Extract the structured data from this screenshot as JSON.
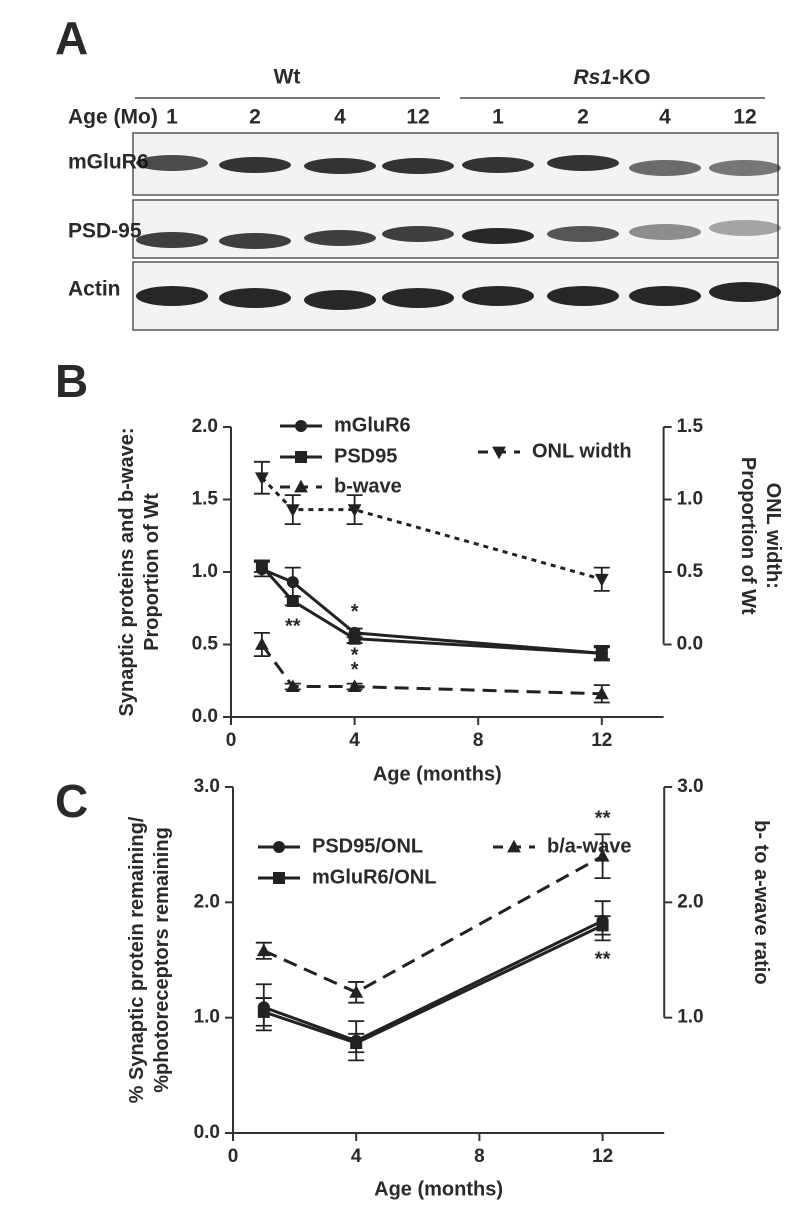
{
  "blot": {
    "panel": "A",
    "age_label": "Age (Mo)",
    "groups": [
      {
        "label": "Wt",
        "lanes": [
          "1",
          "2",
          "4",
          "12"
        ]
      },
      {
        "label_italic": "Rs1",
        "label": "-KO",
        "lanes": [
          "1",
          "2",
          "4",
          "12"
        ]
      }
    ],
    "rows": [
      "mGluR6",
      "PSD-95",
      "Actin"
    ]
  },
  "chart_data": [
    {
      "type": "line",
      "panel": "B",
      "xlabel": "Age (months)",
      "ylabel": [
        "Synaptic proteins and b-wave:",
        "Proportion of Wt"
      ],
      "y2label": [
        "ONL width:",
        "Proportion of Wt"
      ],
      "x": [
        1,
        2,
        4,
        12
      ],
      "xlim": [
        0,
        14
      ],
      "xticks": [
        0,
        4,
        8,
        12
      ],
      "ylim": [
        0,
        2
      ],
      "yticks": [
        {
          "value": 0,
          "label": "0.0"
        },
        0.5,
        {
          "value": 1,
          "label": "1.0"
        },
        1.5,
        {
          "value": 2,
          "label": "2.0"
        }
      ],
      "y2lim": [
        -0.5,
        1.5
      ],
      "y2ticks": [
        {
          "value": 0,
          "label": "0.0"
        },
        0.5,
        {
          "value": 1,
          "label": "1.0"
        },
        1.5
      ],
      "series": [
        {
          "name": "mGluR6",
          "color": "#222222",
          "marker": "circle",
          "line": "solid",
          "values": [
            1.02,
            0.93,
            0.58,
            0.44
          ],
          "errors": [
            0.05,
            0.1,
            0.03,
            0.04
          ]
        },
        {
          "name": "PSD95",
          "color": "#222222",
          "marker": "square",
          "line": "solid",
          "values": [
            1.04,
            0.8,
            0.54,
            0.44
          ],
          "errors": [
            0.04,
            0.03,
            0.03,
            0.05
          ]
        },
        {
          "name": "b-wave",
          "color": "#222222",
          "marker": "triangle",
          "line": "dashed",
          "values": [
            0.5,
            0.21,
            0.21,
            0.16
          ],
          "errors": [
            0.08,
            0.02,
            0.02,
            0.06
          ]
        },
        {
          "name": "ONL width",
          "color": "#222222",
          "marker": "triangle-down",
          "line": "dotted",
          "axis": "y2",
          "values": [
            1.15,
            0.93,
            0.93,
            0.45
          ],
          "errors": [
            0.11,
            0.1,
            0.1,
            0.08
          ]
        }
      ],
      "annotations": [
        {
          "text": "**",
          "x": 2,
          "y": 0.62
        },
        {
          "text": "*",
          "x": 4,
          "y": 0.72
        },
        {
          "text": "*",
          "x": 4,
          "y": 0.42
        },
        {
          "text": "*",
          "x": 4,
          "y": 0.32
        }
      ]
    },
    {
      "type": "line",
      "panel": "C",
      "xlabel": "Age (months)",
      "ylabel": [
        "% Synaptic protein remaining/",
        "%photoreceptors remaining"
      ],
      "y2label": [
        "b- to a-wave ratio"
      ],
      "x": [
        1,
        4,
        12
      ],
      "xlim": [
        0,
        14
      ],
      "xticks": [
        0,
        4,
        8,
        12
      ],
      "ylim": [
        0,
        3
      ],
      "yticks": [
        {
          "value": 0,
          "label": "0.0"
        },
        {
          "value": 1,
          "label": "1.0"
        },
        {
          "value": 2,
          "label": "2.0"
        },
        {
          "value": 3,
          "label": "3.0"
        }
      ],
      "y2lim": [
        0,
        3
      ],
      "y2ticks": [
        {
          "value": 1,
          "label": "1.0"
        },
        {
          "value": 2,
          "label": "2.0"
        },
        {
          "value": 3,
          "label": "3.0"
        }
      ],
      "series": [
        {
          "name": "PSD95/ONL",
          "color": "#222222",
          "marker": "circle",
          "line": "solid",
          "values": [
            1.09,
            0.8,
            1.84
          ],
          "errors": [
            0.2,
            0.17,
            0.17
          ]
        },
        {
          "name": "mGluR6/ONL",
          "color": "#222222",
          "marker": "square",
          "line": "solid",
          "values": [
            1.05,
            0.78,
            1.8
          ],
          "errors": [
            0.12,
            0.08,
            0.08
          ]
        },
        {
          "name": "b/a-wave",
          "color": "#222222",
          "marker": "triangle",
          "line": "dashed",
          "axis": "y2",
          "values": [
            1.58,
            1.22,
            2.4
          ],
          "errors": [
            0.07,
            0.09,
            0.19
          ]
        }
      ],
      "annotations": [
        {
          "text": "**",
          "x": 12,
          "y": 2.72
        },
        {
          "text": "**",
          "x": 12,
          "y": 1.5
        }
      ]
    }
  ]
}
